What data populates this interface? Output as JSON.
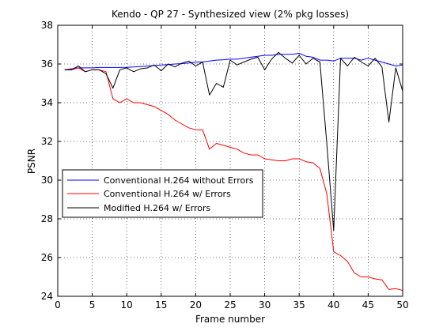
{
  "chart_data": {
    "type": "line",
    "title": "Kendo - QP 27 - Synthesized view (2% pkg losses)",
    "xlabel": "Frame number",
    "ylabel": "PSNR",
    "xlim": [
      0,
      50
    ],
    "ylim": [
      24,
      38
    ],
    "xticks": [
      0,
      5,
      10,
      15,
      20,
      25,
      30,
      35,
      40,
      45,
      50
    ],
    "yticks": [
      24,
      26,
      28,
      30,
      32,
      34,
      36,
      38
    ],
    "grid": true,
    "grid_style": "dotted",
    "legend_position": "lower-left",
    "x": [
      1,
      2,
      3,
      4,
      5,
      6,
      7,
      8,
      9,
      10,
      11,
      12,
      13,
      14,
      15,
      16,
      17,
      18,
      19,
      20,
      21,
      22,
      23,
      24,
      25,
      26,
      27,
      28,
      29,
      30,
      31,
      32,
      33,
      34,
      35,
      36,
      37,
      38,
      39,
      40,
      41,
      42,
      43,
      44,
      45,
      46,
      47,
      48,
      49,
      50
    ],
    "series": [
      {
        "name": "Conventional H.264 without Errors",
        "color": "#0000ff",
        "values": [
          35.7,
          35.75,
          35.8,
          35.8,
          35.8,
          35.82,
          35.82,
          35.82,
          35.82,
          35.83,
          35.85,
          35.87,
          35.9,
          35.92,
          35.95,
          35.97,
          36.0,
          36.02,
          36.05,
          36.1,
          36.1,
          36.15,
          36.2,
          36.22,
          36.25,
          36.25,
          36.3,
          36.35,
          36.4,
          36.45,
          36.45,
          36.5,
          36.5,
          36.5,
          36.55,
          36.4,
          36.35,
          36.2,
          36.2,
          36.15,
          36.3,
          36.3,
          36.3,
          36.2,
          36.3,
          36.2,
          36.1,
          36.0,
          35.9,
          35.95
        ]
      },
      {
        "name": "Conventional H.264 w/ Errors",
        "color": "#ff0000",
        "values": [
          35.7,
          35.7,
          35.8,
          35.6,
          35.7,
          35.7,
          35.6,
          34.2,
          34.0,
          34.2,
          34.0,
          34.0,
          33.9,
          33.8,
          33.6,
          33.4,
          33.1,
          32.9,
          32.7,
          32.6,
          32.6,
          31.6,
          31.9,
          31.8,
          31.7,
          31.6,
          31.4,
          31.3,
          31.3,
          31.1,
          31.05,
          31.0,
          31.0,
          31.1,
          31.1,
          30.95,
          30.9,
          30.6,
          29.3,
          26.3,
          26.1,
          25.8,
          25.2,
          25.0,
          25.0,
          24.9,
          24.85,
          24.35,
          24.4,
          24.3
        ]
      },
      {
        "name": "Modified H.264 w/ Errors",
        "color": "#000000",
        "values": [
          35.7,
          35.7,
          35.9,
          35.6,
          35.7,
          35.7,
          35.5,
          34.75,
          35.7,
          35.8,
          35.6,
          35.75,
          35.8,
          35.95,
          35.65,
          36.0,
          35.85,
          36.05,
          36.15,
          35.9,
          36.1,
          34.4,
          35.0,
          34.8,
          36.2,
          35.95,
          36.1,
          36.25,
          36.35,
          35.7,
          36.25,
          36.6,
          36.3,
          36.05,
          36.45,
          36.0,
          36.3,
          36.1,
          31.9,
          27.4,
          36.3,
          35.9,
          36.35,
          36.1,
          35.9,
          36.3,
          35.85,
          33.0,
          35.8,
          34.6
        ]
      }
    ]
  }
}
